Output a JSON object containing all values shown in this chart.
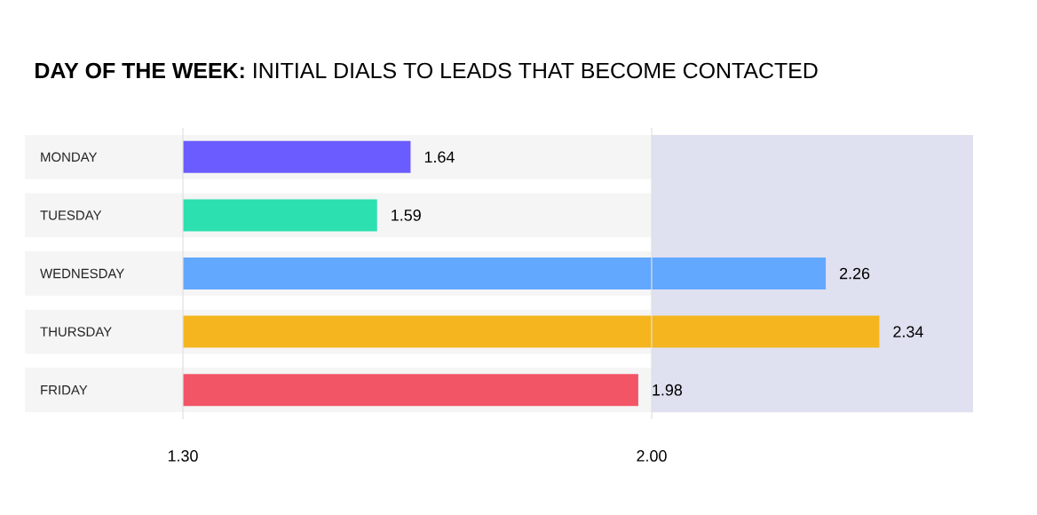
{
  "chart_data": {
    "type": "bar",
    "orientation": "horizontal",
    "title": "**DAY OF THE WEEK:** INITIAL DIALS TO LEADS THAT BECOME CONTACTED",
    "categories": [
      "MONDAY",
      "TUESDAY",
      "WEDNESDAY",
      "THURSDAY",
      "FRIDAY"
    ],
    "values": [
      1.64,
      1.59,
      2.26,
      2.34,
      1.98
    ],
    "colors": [
      "#6a5cff",
      "#2de0b0",
      "#62a8ff",
      "#f5b51e",
      "#f25566"
    ],
    "xlim": [
      1.3,
      2.48
    ],
    "xticks": [
      {
        "value": 1.3,
        "label": "1.30"
      },
      {
        "value": 2.0,
        "label": "2.00"
      }
    ],
    "bands": [
      {
        "axis": "x",
        "from": 2.0,
        "to": 2.48,
        "color": "#dfe1f0"
      }
    ],
    "grid": "x",
    "data_labels": true
  }
}
